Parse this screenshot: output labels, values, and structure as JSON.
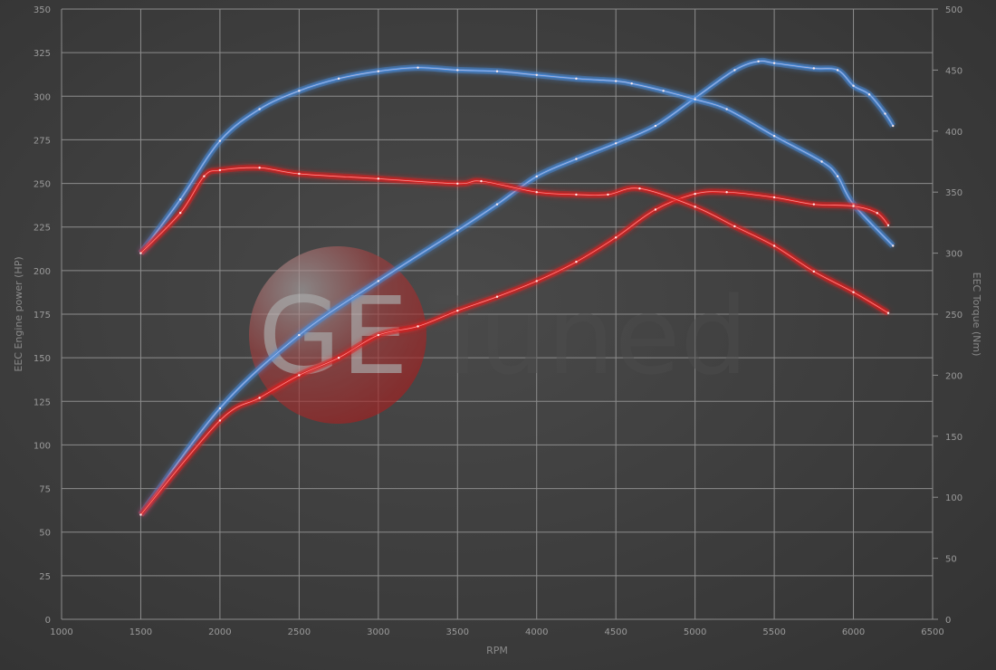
{
  "chart_data": {
    "type": "line",
    "xlabel": "RPM",
    "ylabel": "EEC Engine power (HP)",
    "y2label": "EEC Torque (Nm)",
    "xlim": [
      1000,
      6500
    ],
    "ylim": [
      0,
      350
    ],
    "y2lim": [
      0,
      500
    ],
    "xticks": [
      1000,
      1500,
      2000,
      2500,
      3000,
      3500,
      4000,
      4500,
      5000,
      5500,
      6000,
      6500
    ],
    "yticks": [
      0,
      25,
      50,
      75,
      100,
      125,
      150,
      175,
      200,
      225,
      250,
      275,
      300,
      325,
      350
    ],
    "y2ticks": [
      0,
      50,
      100,
      150,
      200,
      250,
      300,
      350,
      400,
      450,
      500
    ],
    "grid": true,
    "watermark": "GETuned",
    "series": [
      {
        "id": "blue-power",
        "axis": "left",
        "color": "#4a8ee0",
        "x": [
          1500,
          2000,
          2500,
          3000,
          3500,
          3750,
          4000,
          4250,
          4500,
          4750,
          5000,
          5250,
          5400,
          5500,
          5750,
          5900,
          6000,
          6100,
          6200,
          6250
        ],
        "y": [
          60,
          121,
          163,
          194,
          223,
          238,
          254,
          264,
          273,
          283,
          299,
          315,
          320,
          319,
          316,
          315,
          306,
          301,
          290,
          283
        ]
      },
      {
        "id": "blue-torque",
        "axis": "right",
        "color": "#4a8ee0",
        "x": [
          1500,
          1750,
          2000,
          2250,
          2500,
          2750,
          3000,
          3250,
          3500,
          3750,
          4000,
          4250,
          4500,
          4600,
          4800,
          5000,
          5200,
          5500,
          5800,
          5900,
          6000,
          6250
        ],
        "y": [
          300,
          344,
          392,
          418,
          433,
          443,
          449,
          452,
          450,
          449,
          446,
          443,
          441,
          439,
          433,
          426,
          418,
          396,
          375,
          363,
          340,
          306
        ]
      },
      {
        "id": "red-power",
        "axis": "left",
        "color": "#e02020",
        "x": [
          1500,
          2000,
          2250,
          2500,
          2750,
          3000,
          3250,
          3500,
          3750,
          4000,
          4250,
          4500,
          4750,
          5000,
          5200,
          5500,
          5750,
          6000,
          6150,
          6220
        ],
        "y": [
          60,
          114,
          127,
          140,
          150,
          163,
          168,
          177,
          185,
          194,
          205,
          219,
          235,
          244,
          245,
          242,
          238,
          237,
          233,
          226
        ]
      },
      {
        "id": "red-torque",
        "axis": "right",
        "color": "#e02020",
        "x": [
          1500,
          1750,
          1900,
          2000,
          2250,
          2500,
          3000,
          3500,
          3650,
          4000,
          4250,
          4450,
          4650,
          5000,
          5250,
          5500,
          5750,
          6000,
          6220
        ],
        "y": [
          300,
          333,
          363,
          368,
          370,
          365,
          361,
          357,
          359,
          350,
          348,
          348,
          353,
          338,
          322,
          306,
          285,
          268,
          251
        ]
      }
    ]
  }
}
